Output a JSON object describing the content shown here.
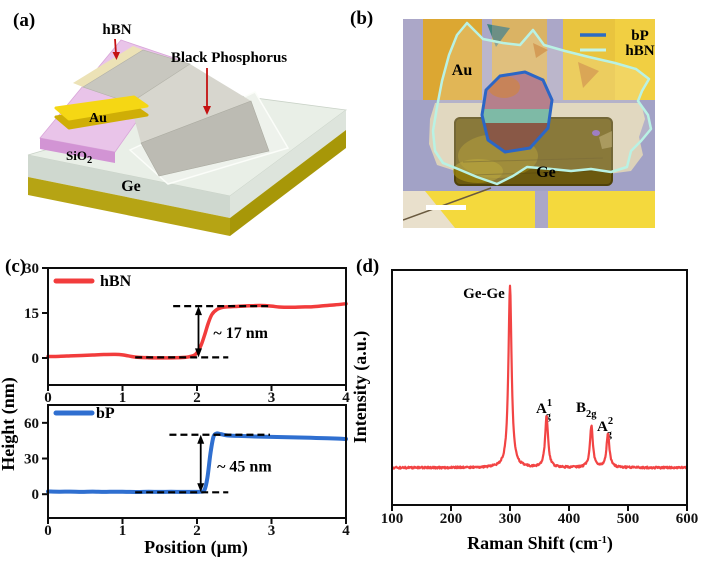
{
  "panels": {
    "a": {
      "tag": "(a)",
      "labels": {
        "hbn": "hBN",
        "bp": "Black Phosphorus",
        "au": "Au",
        "sio2": "SiO₂",
        "sio2_pre": "SiO",
        "sio2_sub": "2",
        "ge": "Ge"
      },
      "colors": {
        "substrate_top": "#e9efe7",
        "substrate_bottom_layer": "#b6a414",
        "sio2": "#e9c4e9",
        "au": "#f5d714",
        "hbn_layer": "#ece2b6",
        "bp_flake": "#bcbbb3",
        "arrow": "#c41111"
      }
    },
    "b": {
      "tag": "(b)",
      "labels": {
        "au": "Au",
        "ge": "Ge"
      },
      "legend": [
        {
          "label": "bP",
          "color": "#2c6cc4"
        },
        {
          "label": "hBN",
          "color": "#c4f5e8"
        }
      ]
    },
    "c": {
      "tag": "(c)"
    },
    "d": {
      "tag": "(d)"
    }
  },
  "chart_data": [
    {
      "type": "line",
      "id": "hbn-height-profile",
      "legend": "hBN",
      "color": "#f23c3c",
      "xlabel": "Position (μm)",
      "ylabel": "Height (nm)",
      "xlim": [
        0,
        4
      ],
      "ylim": [
        -9,
        30
      ],
      "xticks": [
        0,
        1,
        2,
        3,
        4
      ],
      "yticks": [
        0,
        15,
        30
      ],
      "grid": false,
      "legend_position": "top-left",
      "points": [
        [
          0,
          0.5
        ],
        [
          0.15,
          0.55
        ],
        [
          0.3,
          0.7
        ],
        [
          0.45,
          0.85
        ],
        [
          0.6,
          1.0
        ],
        [
          0.75,
          1.15
        ],
        [
          0.9,
          1.2
        ],
        [
          1.0,
          1.05
        ],
        [
          1.1,
          0.6
        ],
        [
          1.2,
          0.25
        ],
        [
          1.35,
          0.1
        ],
        [
          1.5,
          0.05
        ],
        [
          1.65,
          0.05
        ],
        [
          1.8,
          0.15
        ],
        [
          1.9,
          0.45
        ],
        [
          1.98,
          1.2
        ],
        [
          2.05,
          4.0
        ],
        [
          2.1,
          7.5
        ],
        [
          2.15,
          11.5
        ],
        [
          2.2,
          14.5
        ],
        [
          2.27,
          16.2
        ],
        [
          2.35,
          16.9
        ],
        [
          2.45,
          17.1
        ],
        [
          2.55,
          17.2
        ],
        [
          2.7,
          17.4
        ],
        [
          2.85,
          17.5
        ],
        [
          3.0,
          17.3
        ],
        [
          3.1,
          17.0
        ],
        [
          3.25,
          16.9
        ],
        [
          3.4,
          17.0
        ],
        [
          3.55,
          17.1
        ],
        [
          3.7,
          17.4
        ],
        [
          3.85,
          17.7
        ],
        [
          4.0,
          18.1
        ]
      ],
      "annotation": {
        "label": "~ 17 nm",
        "step_nm": 17,
        "dash_low": {
          "y": 0.2,
          "x1": 1.17,
          "x2": 2.42
        },
        "dash_high": {
          "y": 17.3,
          "x1": 1.68,
          "x2": 2.98
        },
        "arrow_x": 2.02,
        "label_pos": [
          2.22,
          6.6
        ]
      }
    },
    {
      "type": "line",
      "id": "bp-height-profile",
      "legend": "bP",
      "color": "#2f6fd0",
      "xlabel": "Position (μm)",
      "ylabel": "Height (nm)",
      "xlim": [
        0,
        4
      ],
      "ylim": [
        -20,
        75
      ],
      "xticks": [
        0,
        1,
        2,
        3,
        4
      ],
      "yticks": [
        0,
        30,
        60
      ],
      "grid": false,
      "legend_position": "top-left",
      "points": [
        [
          0,
          2.3
        ],
        [
          0.15,
          2.1
        ],
        [
          0.3,
          2.2
        ],
        [
          0.45,
          2.0
        ],
        [
          0.6,
          2.15
        ],
        [
          0.75,
          1.95
        ],
        [
          0.9,
          2.1
        ],
        [
          1.05,
          2.0
        ],
        [
          1.2,
          1.9
        ],
        [
          1.35,
          2.05
        ],
        [
          1.5,
          1.95
        ],
        [
          1.65,
          2.05
        ],
        [
          1.8,
          1.95
        ],
        [
          1.95,
          2.0
        ],
        [
          2.05,
          2.1
        ],
        [
          2.1,
          3.5
        ],
        [
          2.14,
          14
        ],
        [
          2.18,
          34
        ],
        [
          2.22,
          48
        ],
        [
          2.26,
          51
        ],
        [
          2.32,
          50.5
        ],
        [
          2.4,
          49.5
        ],
        [
          2.55,
          49.0
        ],
        [
          2.7,
          48.7
        ],
        [
          2.85,
          48.4
        ],
        [
          3.0,
          48.2
        ],
        [
          3.15,
          48.0
        ],
        [
          3.3,
          47.8
        ],
        [
          3.45,
          47.6
        ],
        [
          3.6,
          47.3
        ],
        [
          3.75,
          47.0
        ],
        [
          3.9,
          46.7
        ],
        [
          4.0,
          46.4
        ]
      ],
      "annotation": {
        "label": "~ 45 nm",
        "step_nm": 45,
        "dash_low": {
          "y": 1.6,
          "x1": 1.17,
          "x2": 2.42
        },
        "dash_high": {
          "y": 50,
          "x1": 1.63,
          "x2": 2.98
        },
        "arrow_x": 2.05,
        "label_pos": [
          2.27,
          19
        ]
      }
    },
    {
      "type": "line",
      "id": "raman-spectrum",
      "color": "#f24444",
      "xlabel": "Raman Shift (cm⁻¹)",
      "xlabel_parts": {
        "pre": "Raman Shift (cm",
        "sup": "-1",
        "post": ")"
      },
      "ylabel": "Intensity (a.u.)",
      "xlim": [
        100,
        600
      ],
      "xticks": [
        100,
        200,
        300,
        400,
        500,
        600
      ],
      "yticks": [],
      "grid": false,
      "baseline": 0.018,
      "noise": 0.008,
      "peaks": [
        {
          "center": 300,
          "height": 0.77,
          "hwhm": 3.2
        },
        {
          "center": 362,
          "height": 0.215,
          "hwhm": 3.0
        },
        {
          "center": 438,
          "height": 0.175,
          "hwhm": 3.0
        },
        {
          "center": 466,
          "height": 0.142,
          "hwhm": 3.0
        }
      ],
      "peak_labels": [
        {
          "text": "Ge-Ge"
        },
        {
          "letter": "A",
          "sup": "1",
          "sub": "g"
        },
        {
          "letter": "B",
          "sub": "2g"
        },
        {
          "letter": "A",
          "sup": "2",
          "sub": "g"
        }
      ]
    }
  ]
}
